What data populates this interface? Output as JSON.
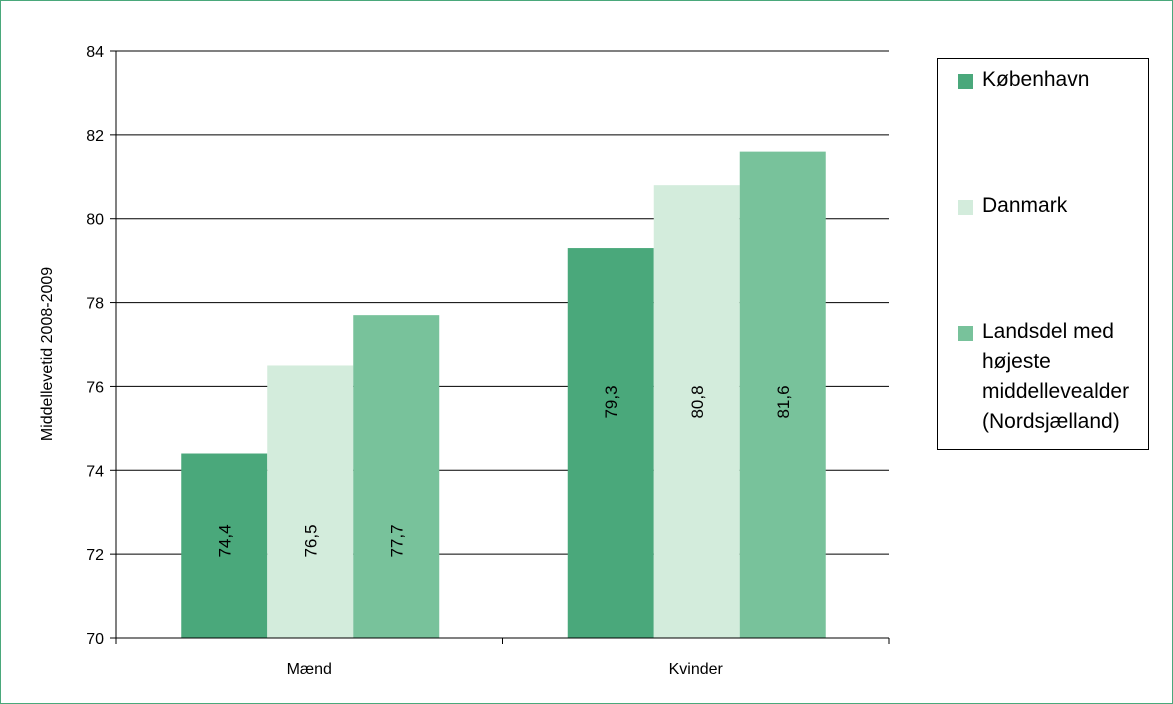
{
  "chart_data": {
    "type": "bar",
    "categories": [
      "Mænd",
      "Kvinder"
    ],
    "series": [
      {
        "name": "København",
        "values": [
          74.4,
          79.3
        ],
        "labels": [
          "74,4",
          "79,3"
        ],
        "color": "#4aa87b"
      },
      {
        "name": "Danmark",
        "values": [
          76.5,
          80.8
        ],
        "labels": [
          "76,5",
          "80,8"
        ],
        "color": "#d3ecdc"
      },
      {
        "name": "Landsdel med højeste middellevealder (Nordsjælland)",
        "values": [
          77.7,
          81.6
        ],
        "labels": [
          "77,7",
          "81,6"
        ],
        "color": "#78c29b"
      }
    ],
    "ylabel": "Middellevetid 2008-2009",
    "xlabel": "",
    "ylim": [
      70,
      84
    ],
    "yticks": [
      70,
      72,
      74,
      76,
      78,
      80,
      82,
      84
    ],
    "grid": true,
    "legend_position": "right"
  },
  "colors": {
    "border": "#4aa87b",
    "gridline": "#000000"
  }
}
